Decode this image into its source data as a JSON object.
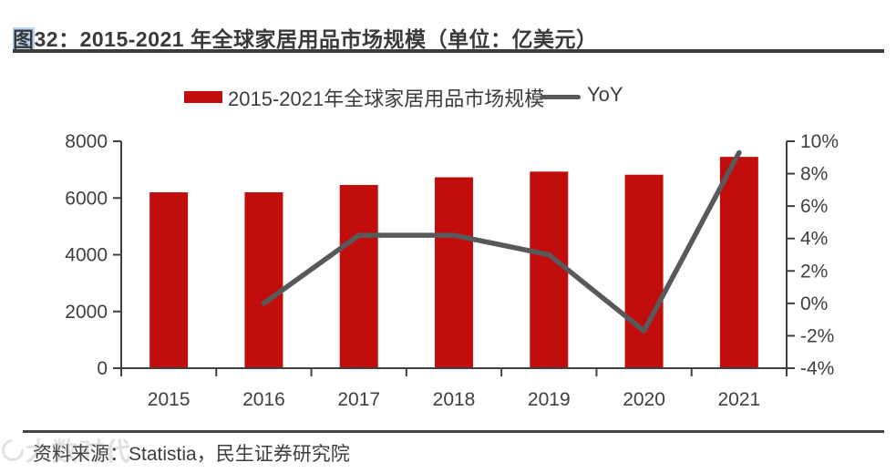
{
  "figure": {
    "title_highlight": "图",
    "title_rest": "32：2015-2021 年全球家居用品市场规模（单位：亿美元）"
  },
  "legend": {
    "bar_label": "2015-2021年全球家居用品市场规模",
    "line_label": "YoY"
  },
  "footer": {
    "source": "资料来源：Statistia，民生证券研究院"
  },
  "watermark": "大数时代",
  "colors": {
    "bar": "#c20d0d",
    "line": "#595959",
    "axis": "#404040"
  },
  "chart_data": {
    "type": "bar+line",
    "title": "图32：2015-2021 年全球家居用品市场规模（单位：亿美元）",
    "categories": [
      "2015",
      "2016",
      "2017",
      "2018",
      "2019",
      "2020",
      "2021"
    ],
    "series": [
      {
        "name": "2015-2021年全球家居用品市场规模",
        "type": "bar",
        "axis": "left",
        "color": "#c20d0d",
        "values": [
          6200,
          6200,
          6460,
          6730,
          6930,
          6820,
          7450
        ]
      },
      {
        "name": "YoY",
        "type": "line",
        "axis": "right",
        "color": "#595959",
        "values": [
          null,
          0.0,
          4.2,
          4.2,
          3.0,
          -1.7,
          9.3
        ]
      }
    ],
    "left_axis": {
      "min": 0,
      "max": 8000,
      "ticks": [
        {
          "value": 0,
          "label": "0"
        },
        {
          "value": 2000,
          "label": "2000"
        },
        {
          "value": 4000,
          "label": "4000"
        },
        {
          "value": 6000,
          "label": "6000"
        },
        {
          "value": 8000,
          "label": "8000"
        }
      ]
    },
    "right_axis": {
      "min": -4,
      "max": 10,
      "ticks": [
        {
          "value": -4,
          "label": "-4%"
        },
        {
          "value": -2,
          "label": "-2%"
        },
        {
          "value": 0,
          "label": "0%"
        },
        {
          "value": 2,
          "label": "2%"
        },
        {
          "value": 4,
          "label": "4%"
        },
        {
          "value": 6,
          "label": "6%"
        },
        {
          "value": 8,
          "label": "8%"
        },
        {
          "value": 10,
          "label": "10%"
        }
      ]
    },
    "grid": false,
    "legend_position": "top"
  }
}
